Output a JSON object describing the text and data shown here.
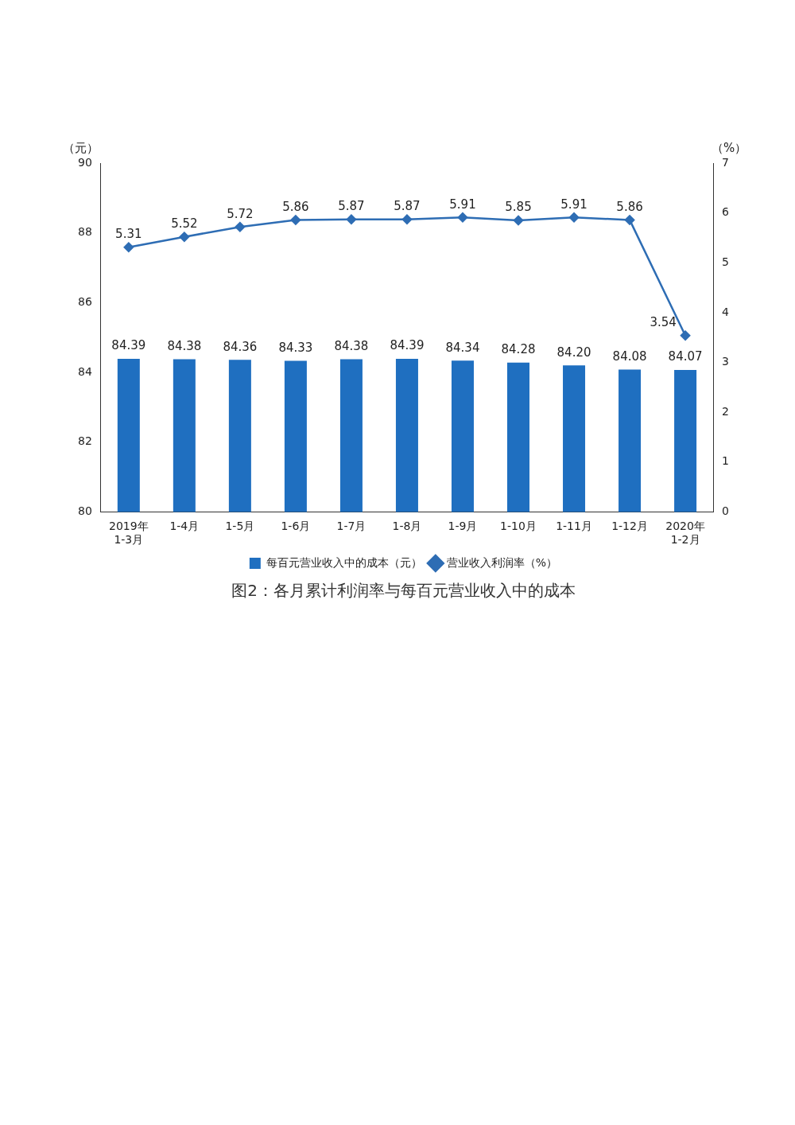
{
  "chart_data": {
    "type": "bar",
    "title": "图2：各月累计利润率与每百元营业收入中的成本",
    "ylabel": "（元）",
    "y2label": "（%）",
    "categories": [
      "2019年 1-3月",
      "1-4月",
      "1-5月",
      "1-6月",
      "1-7月",
      "1-8月",
      "1-9月",
      "1-10月",
      "1-11月",
      "1-12月",
      "2020年 1-2月"
    ],
    "series": [
      {
        "name": "每百元营业收入中的成本（元）",
        "color": "#1f6fc0",
        "values": [
          84.39,
          84.38,
          84.36,
          84.33,
          84.38,
          84.39,
          84.34,
          84.28,
          84.2,
          84.08,
          84.07
        ],
        "value_labels": [
          "84.39",
          "84.38",
          "84.36",
          "84.33",
          "84.38",
          "84.39",
          "84.34",
          "84.28",
          "84.20",
          "84.08",
          "84.07"
        ]
      },
      {
        "name": "营业收入利润率（%）",
        "type": "line",
        "axis": "y2",
        "color": "#2e6db4",
        "values": [
          5.31,
          5.52,
          5.72,
          5.86,
          5.87,
          5.87,
          5.91,
          5.85,
          5.91,
          5.86,
          3.54
        ],
        "value_labels": [
          "5.31",
          "5.52",
          "5.72",
          "5.86",
          "5.87",
          "5.87",
          "5.91",
          "5.85",
          "5.91",
          "5.86",
          "3.54"
        ]
      }
    ],
    "ylim": [
      80,
      90
    ],
    "yticks": [
      80,
      82,
      84,
      86,
      88,
      90
    ],
    "y2lim": [
      0,
      7
    ],
    "y2ticks": [
      0,
      1,
      2,
      3,
      4,
      5,
      6,
      7
    ],
    "legend": "bottom",
    "marker": "diamond",
    "grid": false
  }
}
